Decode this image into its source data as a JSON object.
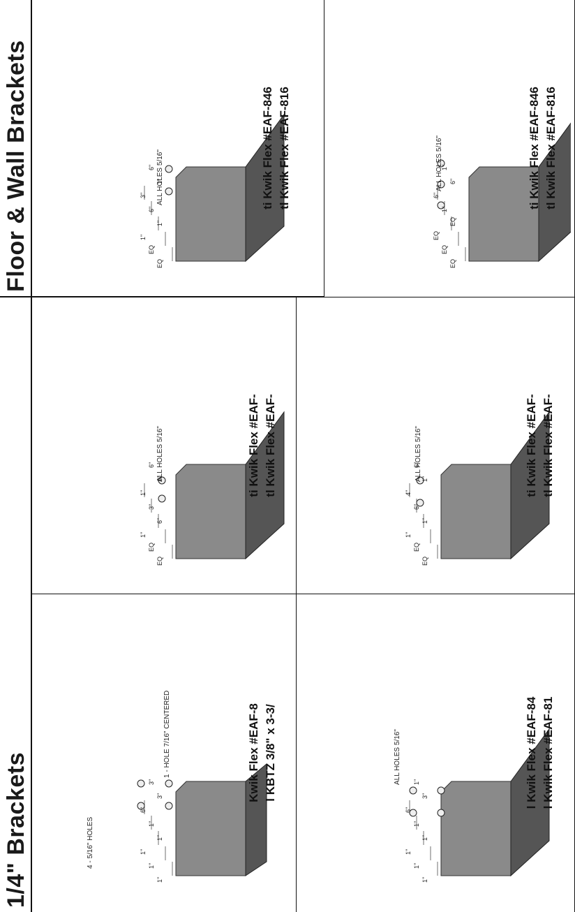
{
  "titles": {
    "left": "1/4\" Brackets",
    "right": "Floor & Wall Brackets"
  },
  "panels": [
    {
      "note": "4 - 5/16\" HOLES",
      "note2": "1 - HOLE 7/16\" CENTERED",
      "dims": [
        "1\"",
        "1\"",
        "1\"",
        "1\"",
        "1\"",
        "6\"",
        "3\"",
        "3\""
      ],
      "caption1": "Kwik Flex #EAF-8",
      "caption2": "l KBTZ 3/8\" x 3-3/"
    },
    {
      "note": "ALL HOLES 5/16\"",
      "dims": [
        "EQ",
        "EQ",
        "1\"",
        "6\"",
        "3\"",
        "1\"",
        "1\"",
        "6\""
      ],
      "caption1": "ti Kwik Flex #EAF-",
      "caption2": "tl Kwik Flex #EAF-"
    },
    {
      "note": "ALL HOLES 5/16\"",
      "dims": [
        "EQ",
        "EQ",
        "1\"",
        "1\"",
        "6\"",
        "3\"",
        "1\"",
        "6\""
      ],
      "caption1": "ti Kwik Flex #EAF-846",
      "caption2": "tl Kwik Flex #EAF-816"
    },
    {
      "note": "ALL HOLES 5/16\"",
      "dims": [
        "1\"",
        "1\"",
        "1\"",
        "1\"",
        "1\"",
        "6\"",
        "3\"",
        "1\""
      ],
      "caption1": "l Kwik Flex #EAF-84",
      "caption2": "l Kwik Flex #EAF-81"
    },
    {
      "note": "ALL HOLES 5/16\"",
      "dims": [
        "EQ",
        "EQ",
        "1\"",
        "1\"",
        "6\"",
        "4\"",
        "1\"",
        "6\""
      ],
      "caption1": "ti Kwik Flex #EAF-",
      "caption2": "tl Kwik Flex #EAF-"
    },
    {
      "note": "ALL HOLES 5/16\"",
      "dims": [
        "EQ",
        "EQ",
        "EQ",
        "EQ",
        "1\"",
        "6\"",
        "6\"",
        "1\""
      ],
      "caption1": "ti Kwik Flex #EAF-846",
      "caption2": "tl Kwik Flex #EAF-816"
    }
  ]
}
